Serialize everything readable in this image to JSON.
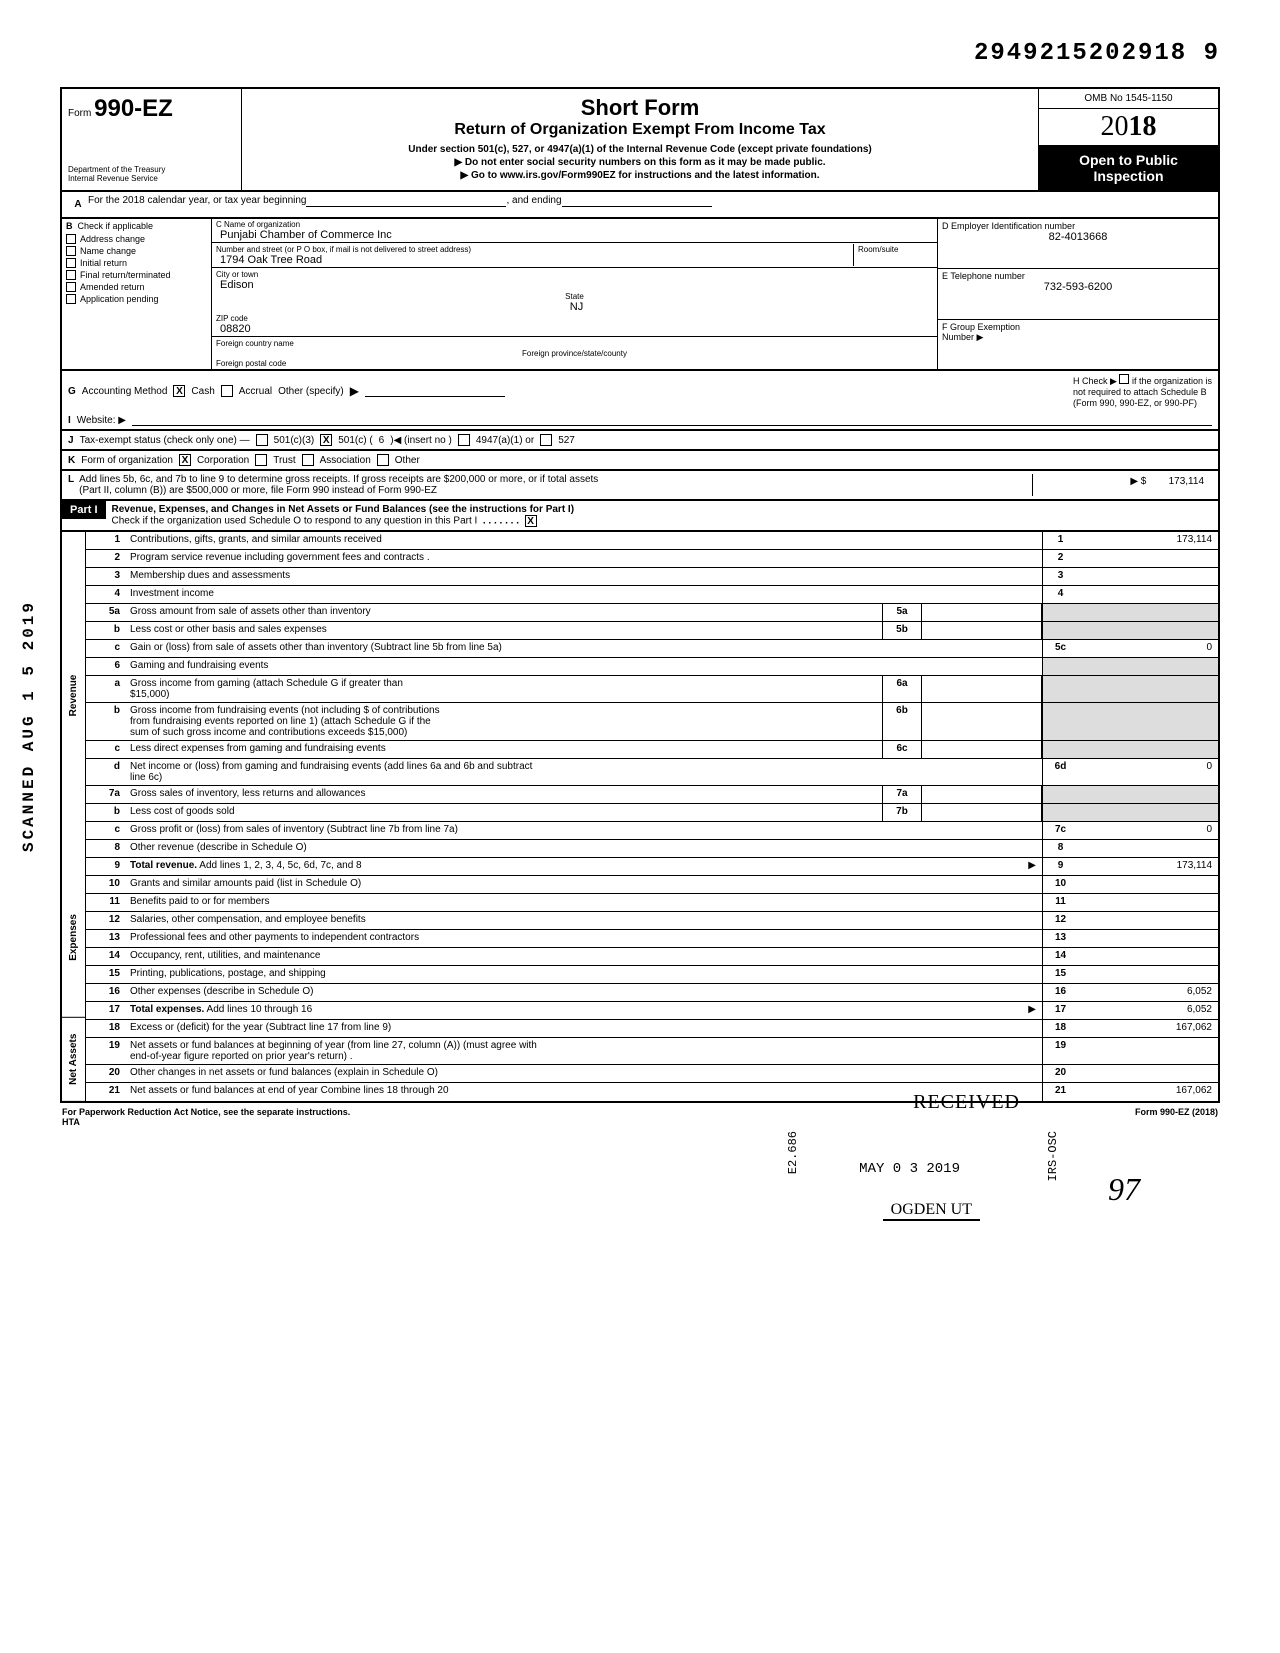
{
  "top_number": "2949215202918  9",
  "header": {
    "form_prefix": "Form",
    "form_number": "990-EZ",
    "dept1": "Department of the Treasury",
    "dept2": "Internal Revenue Service",
    "title1": "Short Form",
    "title2": "Return of Organization Exempt From Income Tax",
    "sub1": "Under section 501(c), 527, or 4947(a)(1) of the Internal Revenue Code (except private foundations)",
    "sub2": "▶   Do not enter social security numbers on this form as it may be made public.",
    "sub3": "▶   Go to www.irs.gov/Form990EZ for instructions and the latest information.",
    "omb": "OMB No 1545-1150",
    "year_outline": "20",
    "year_bold": "18",
    "open_public1": "Open to Public",
    "open_public2": "Inspection"
  },
  "row_a": {
    "letter": "A",
    "text": "For the 2018 calendar year, or tax year beginning",
    "ending": ", and ending"
  },
  "row_b": {
    "letter": "B",
    "head": "Check if applicable",
    "opts": [
      "Address change",
      "Name change",
      "Initial return",
      "Final return/terminated",
      "Amended return",
      "Application pending"
    ],
    "c_label": "C  Name of organization",
    "c_name": "Punjabi Chamber of Commerce Inc",
    "addr_label": "Number and street (or P O  box, if mail is not delivered to street address)",
    "room_label": "Room/suite",
    "addr": "1794 Oak Tree Road",
    "city_label": "City or town",
    "state_label": "State",
    "zip_label": "ZIP code",
    "city": "Edison",
    "state": "NJ",
    "zip": "08820",
    "foreign_country_label": "Foreign country name",
    "foreign_prov_label": "Foreign province/state/county",
    "foreign_postal_label": "Foreign postal code",
    "d_label": "D  Employer Identification number",
    "d_val": "82-4013668",
    "e_label": "E  Telephone number",
    "e_val": "732-593-6200",
    "f_label": "F  Group Exemption",
    "f_label2": "Number ▶"
  },
  "row_g": {
    "letter": "G",
    "text": "Accounting Method",
    "cash": "Cash",
    "accrual": "Accrual",
    "other": "Other (specify)",
    "h_label": "H  Check ▶",
    "h_text1": "if the organization is",
    "h_text2": "not required to attach Schedule B",
    "h_text3": "(Form 990, 990-EZ, or 990-PF)"
  },
  "row_i": {
    "letter": "I",
    "text": "Website: ▶"
  },
  "row_j": {
    "letter": "J",
    "text": "Tax-exempt status (check only one) —",
    "opt1": "501(c)(3)",
    "opt2": "501(c) (",
    "opt2_val": "6",
    "opt2_suffix": ")◀ (insert no )",
    "opt3": "4947(a)(1) or",
    "opt4": "527"
  },
  "row_k": {
    "letter": "K",
    "text": "Form of organization",
    "corp": "Corporation",
    "trust": "Trust",
    "assoc": "Association",
    "other": "Other"
  },
  "row_l": {
    "letter": "L",
    "text1": "Add lines 5b, 6c, and 7b to line 9 to determine gross receipts. If gross receipts are $200,000 or more, or if total assets",
    "text2": "(Part II, column (B)) are $500,000 or more, file Form 990 instead of Form 990-EZ",
    "arrow": "▶ $",
    "val": "173,114"
  },
  "part1": {
    "label": "Part I",
    "title": "Revenue, Expenses, and Changes in Net Assets or Fund Balances (see the instructions for Part I)",
    "sub": "Check if the organization used Schedule O to respond to any question in this Part I",
    "checked": "X"
  },
  "side_stamp": "SCANNED  AUG 1 5 2019",
  "sections": {
    "revenue_label": "Revenue",
    "expenses_label": "Expenses",
    "netassets_label": "Net Assets"
  },
  "lines": [
    {
      "n": "1",
      "d": "Contributions, gifts, grants, and similar amounts received",
      "rn": "1",
      "rv": "173,114"
    },
    {
      "n": "2",
      "d": "Program service revenue including government fees and contracts .",
      "rn": "2",
      "rv": ""
    },
    {
      "n": "3",
      "d": "Membership dues and assessments",
      "rn": "3",
      "rv": ""
    },
    {
      "n": "4",
      "d": "Investment income",
      "rn": "4",
      "rv": ""
    },
    {
      "n": "5a",
      "d": "Gross amount from sale of assets other than inventory",
      "mb": "5a",
      "rn": "",
      "rv": "",
      "shaded": true
    },
    {
      "n": "b",
      "d": "Less  cost or other basis and sales expenses",
      "mb": "5b",
      "rn": "",
      "rv": "",
      "shaded": true
    },
    {
      "n": "c",
      "d": "Gain or (loss) from sale of assets other than inventory (Subtract line 5b from line 5a)",
      "rn": "5c",
      "rv": "0"
    },
    {
      "n": "6",
      "d": "Gaming and fundraising events",
      "rn": "",
      "rv": "",
      "shaded": true
    },
    {
      "n": "a",
      "d": "Gross income from gaming (attach Schedule G if greater than\n$15,000)",
      "mb": "6a",
      "rn": "",
      "rv": "",
      "shaded": true
    },
    {
      "n": "b",
      "d": "Gross income from fundraising events (not including        $                          of contributions\nfrom fundraising events reported on line 1) (attach Schedule G if the\nsum of such gross income and contributions exceeds $15,000)",
      "mb": "6b",
      "rn": "",
      "rv": "",
      "shaded": true
    },
    {
      "n": "c",
      "d": "Less  direct expenses from gaming and fundraising events",
      "mb": "6c",
      "rn": "",
      "rv": "",
      "shaded": true
    },
    {
      "n": "d",
      "d": "Net income or (loss) from gaming and fundraising events (add lines 6a and 6b and subtract\nline 6c)",
      "rn": "6d",
      "rv": "0"
    },
    {
      "n": "7a",
      "d": "Gross sales of inventory, less returns and allowances",
      "mb": "7a",
      "rn": "",
      "rv": "",
      "shaded": true
    },
    {
      "n": "b",
      "d": "Less  cost of goods sold",
      "mb": "7b",
      "rn": "",
      "rv": "",
      "shaded": true
    },
    {
      "n": "c",
      "d": "Gross profit or (loss) from sales of inventory (Subtract line 7b from line 7a)",
      "rn": "7c",
      "rv": "0"
    },
    {
      "n": "8",
      "d": "Other revenue (describe in Schedule O)",
      "rn": "8",
      "rv": ""
    },
    {
      "n": "9",
      "d": "Total revenue. Add lines 1, 2, 3, 4, 5c, 6d, 7c, and 8",
      "rn": "9",
      "rv": "173,114",
      "bold": true,
      "arrow": true
    },
    {
      "n": "10",
      "d": "Grants and similar amounts paid (list in Schedule O)",
      "rn": "10",
      "rv": ""
    },
    {
      "n": "11",
      "d": "Benefits paid to or for members",
      "rn": "11",
      "rv": ""
    },
    {
      "n": "12",
      "d": "Salaries, other compensation, and employee benefits",
      "rn": "12",
      "rv": ""
    },
    {
      "n": "13",
      "d": "Professional fees and other payments to independent contractors",
      "rn": "13",
      "rv": ""
    },
    {
      "n": "14",
      "d": "Occupancy, rent, utilities, and maintenance",
      "rn": "14",
      "rv": ""
    },
    {
      "n": "15",
      "d": "Printing, publications, postage, and shipping",
      "rn": "15",
      "rv": ""
    },
    {
      "n": "16",
      "d": "Other expenses (describe in Schedule O)",
      "rn": "16",
      "rv": "6,052"
    },
    {
      "n": "17",
      "d": "Total expenses. Add lines 10 through 16",
      "rn": "17",
      "rv": "6,052",
      "bold": true,
      "arrow": true
    },
    {
      "n": "18",
      "d": "Excess or (deficit) for the year (Subtract line 17 from line 9)",
      "rn": "18",
      "rv": "167,062"
    },
    {
      "n": "19",
      "d": "Net assets or fund balances at beginning of year (from line 27, column (A)) (must agree with\nend-of-year figure reported on prior year's return) .",
      "rn": "19",
      "rv": ""
    },
    {
      "n": "20",
      "d": "Other changes in net assets or fund balances (explain in Schedule O)",
      "rn": "20",
      "rv": ""
    },
    {
      "n": "21",
      "d": "Net assets or fund balances at end of year  Combine lines 18 through 20",
      "rn": "21",
      "rv": "167,062"
    }
  ],
  "footer": {
    "left": "For Paperwork Reduction Act Notice, see the separate instructions.",
    "hta": "HTA",
    "right": "Form 990-EZ (2018)"
  },
  "stamps": {
    "received": "RECEIVED",
    "date": "MAY 0 3 2019",
    "ogden": "OGDEN  UT",
    "vert1": "E2.686",
    "vert2": "IRS-OSC",
    "hand": "97"
  },
  "colors": {
    "black": "#000000",
    "shade": "#dddddd"
  }
}
